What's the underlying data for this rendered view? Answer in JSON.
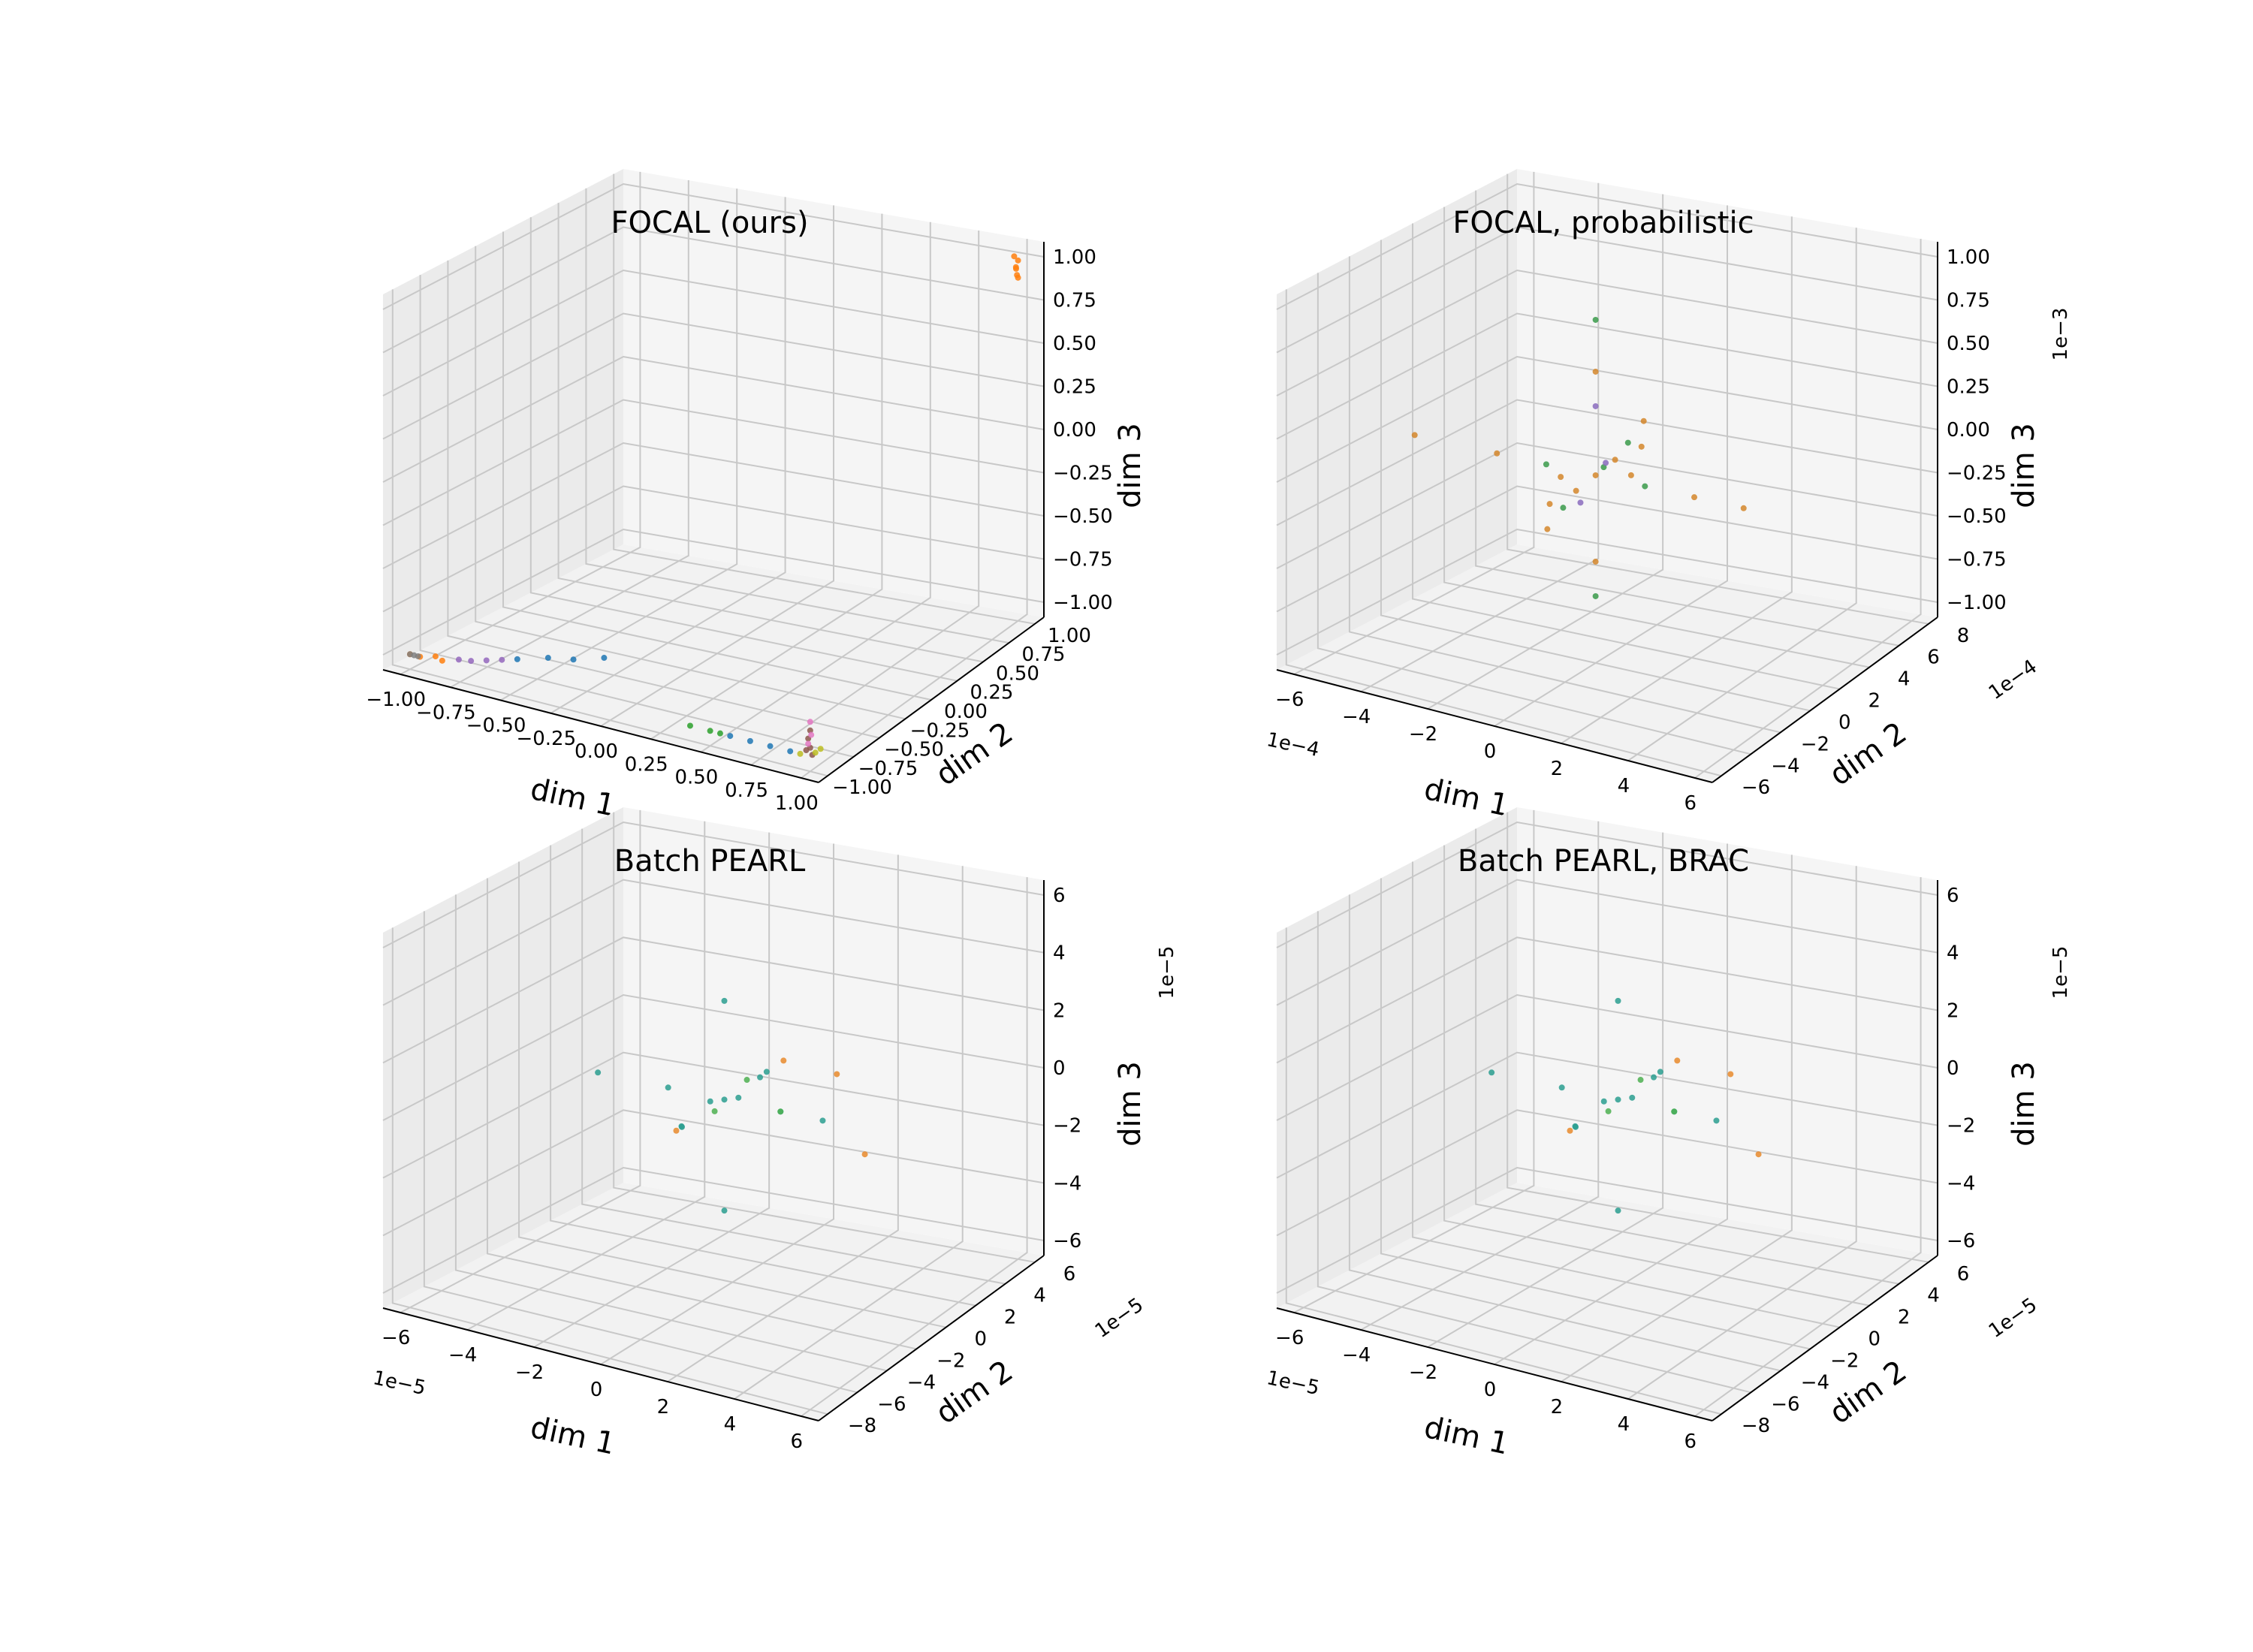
{
  "figure": {
    "background": "#ffffff",
    "pane_color": "#f2f2f2",
    "grid_color": "#c8c8c8"
  },
  "chart_data": [
    {
      "type": "scatter",
      "subtype": "3d",
      "title": "FOCAL (ours)",
      "xlabel": "dim 1",
      "ylabel": "dim 2",
      "zlabel": "dim 3",
      "xlim": [
        -1.0,
        1.0
      ],
      "ylim": [
        -1.0,
        1.0
      ],
      "zlim": [
        -1.0,
        1.0
      ],
      "xticks": [
        "−1.00",
        "−0.75",
        "−0.50",
        "−0.25",
        "0.00",
        "0.25",
        "0.50",
        "0.75",
        "1.00"
      ],
      "yticks": [
        "−1.00",
        "−0.75",
        "−0.50",
        "−0.25",
        "0.00",
        "0.25",
        "0.50",
        "0.75",
        "1.00"
      ],
      "zticks": [
        "−1.00",
        "−0.75",
        "−0.50",
        "−0.25",
        "0.00",
        "0.25",
        "0.50",
        "0.75",
        "1.00"
      ],
      "x_offset": "",
      "y_offset": "",
      "z_offset": "",
      "grid": true,
      "series": [
        {
          "name": "orange cluster top",
          "color": "#ff7f0e",
          "points": [
            [
              1.0,
              1.0,
              1.0
            ],
            [
              1.0,
              0.98,
              0.97
            ],
            [
              0.99,
              1.0,
              0.95
            ],
            [
              1.0,
              0.99,
              0.92
            ],
            [
              0.98,
              1.0,
              1.02
            ],
            [
              1.0,
              1.0,
              0.9
            ]
          ]
        },
        {
          "name": "brown cluster",
          "color": "#8c564b",
          "points": [
            [
              1.0,
              -1.0,
              -0.95
            ],
            [
              0.99,
              -1.0,
              -0.9
            ],
            [
              1.0,
              -0.98,
              -1.0
            ],
            [
              1.0,
              -1.0,
              -0.85
            ],
            [
              0.98,
              -1.0,
              -0.97
            ]
          ]
        },
        {
          "name": "pink cluster",
          "color": "#e377c2",
          "points": [
            [
              1.0,
              -1.0,
              -0.8
            ],
            [
              1.0,
              -0.99,
              -0.88
            ],
            [
              0.99,
              -1.0,
              -0.93
            ]
          ]
        },
        {
          "name": "blue streak",
          "color": "#1f77b4",
          "points": [
            [
              -0.3,
              -0.5,
              -1.0
            ],
            [
              -0.4,
              -0.6,
              -1.0
            ],
            [
              -0.5,
              -0.65,
              -1.0
            ],
            [
              -0.6,
              -0.75,
              -1.0
            ],
            [
              0.6,
              -1.0,
              -1.0
            ],
            [
              0.7,
              -1.0,
              -1.0
            ],
            [
              0.8,
              -1.0,
              -1.0
            ],
            [
              0.9,
              -1.0,
              -1.0
            ]
          ]
        },
        {
          "name": "purple streak",
          "color": "#9467bd",
          "points": [
            [
              -0.65,
              -0.8,
              -1.0
            ],
            [
              -0.7,
              -0.85,
              -1.0
            ],
            [
              -0.75,
              -0.9,
              -1.0
            ],
            [
              -0.8,
              -0.92,
              -1.0
            ]
          ]
        },
        {
          "name": "green streak",
          "color": "#2ca02c",
          "points": [
            [
              0.4,
              -1.0,
              -1.0
            ],
            [
              0.5,
              -1.0,
              -1.0
            ],
            [
              0.55,
              -1.0,
              -1.0
            ]
          ]
        },
        {
          "name": "olive streak",
          "color": "#bcbd22",
          "points": [
            [
              0.95,
              -1.0,
              -1.0
            ],
            [
              1.0,
              -0.95,
              -1.0
            ],
            [
              1.0,
              -0.9,
              -1.0
            ]
          ]
        },
        {
          "name": "orange base",
          "color": "#ff7f0e",
          "points": [
            [
              -0.9,
              -0.95,
              -1.0
            ],
            [
              -0.95,
              -1.0,
              -1.0
            ],
            [
              -1.0,
              -1.0,
              -1.0
            ],
            [
              -0.85,
              -0.98,
              -1.0
            ]
          ]
        },
        {
          "name": "gray base",
          "color": "#7f7f7f",
          "points": [
            [
              -1.0,
              -1.0,
              -1.0
            ],
            [
              -0.98,
              -1.0,
              -1.0
            ],
            [
              -0.96,
              -1.0,
              -1.0
            ]
          ]
        }
      ]
    },
    {
      "type": "scatter",
      "subtype": "3d",
      "title": "FOCAL, probabilistic",
      "xlabel": "dim 1",
      "ylabel": "dim 2",
      "zlabel": "dim 3",
      "xlim": [
        -6,
        6
      ],
      "ylim": [
        -6,
        8
      ],
      "zlim": [
        -1.0,
        1.0
      ],
      "xticks": [
        "−6",
        "−4",
        "−2",
        "0",
        "2",
        "4",
        "6"
      ],
      "yticks": [
        "−6",
        "−4",
        "−2",
        "0",
        "2",
        "4",
        "6",
        "8"
      ],
      "zticks": [
        "−1.00",
        "−0.75",
        "−0.50",
        "−0.25",
        "0.00",
        "0.25",
        "0.50",
        "0.75",
        "1.00"
      ],
      "x_offset": "1e−4",
      "y_offset": "1e−4",
      "z_offset": "1e−3",
      "grid": true,
      "series": [
        {
          "name": "mixed points",
          "color": "#d4862a",
          "points": [
            [
              0,
              0,
              0
            ],
            [
              0.5,
              0.2,
              0.1
            ],
            [
              -0.5,
              -0.2,
              -0.1
            ],
            [
              3,
              0,
              0
            ],
            [
              4.5,
              0,
              0
            ],
            [
              -3,
              0,
              0
            ],
            [
              -5.5,
              0,
              0
            ],
            [
              0,
              3,
              0
            ],
            [
              0,
              -3,
              0
            ],
            [
              0,
              0,
              0.6
            ],
            [
              0,
              0,
              -0.5
            ],
            [
              1,
              1,
              0.3
            ],
            [
              -1,
              -1,
              -0.3
            ],
            [
              2,
              -2,
              0.2
            ],
            [
              -2,
              2,
              -0.2
            ]
          ]
        },
        {
          "name": "green points",
          "color": "#3a9a4a",
          "points": [
            [
              0.2,
              0.1,
              0.05
            ],
            [
              0.8,
              0.4,
              0.2
            ],
            [
              -0.8,
              -0.4,
              -0.2
            ],
            [
              0,
              0,
              0.9
            ],
            [
              1.5,
              0,
              0
            ],
            [
              -1.5,
              0,
              0
            ],
            [
              0,
              0,
              -0.7
            ]
          ]
        },
        {
          "name": "purple points",
          "color": "#8a6bbd",
          "points": [
            [
              0.4,
              -0.2,
              0.1
            ],
            [
              -0.6,
              0.3,
              -0.2
            ],
            [
              0,
              0,
              0.4
            ]
          ]
        }
      ]
    },
    {
      "type": "scatter",
      "subtype": "3d",
      "title": "Batch PEARL",
      "xlabel": "dim 1",
      "ylabel": "dim 2",
      "zlabel": "dim 3",
      "xlim": [
        -7,
        7
      ],
      "ylim": [
        -8,
        7
      ],
      "zlim": [
        -7,
        7
      ],
      "xticks": [
        "−6",
        "−4",
        "−2",
        "0",
        "2",
        "4",
        "6"
      ],
      "yticks": [
        "−8",
        "−6",
        "−4",
        "−2",
        "0",
        "2",
        "4",
        "6"
      ],
      "zticks": [
        "−6",
        "−4",
        "−2",
        "0",
        "2",
        "4",
        "6"
      ],
      "x_offset": "1e−5",
      "y_offset": "1e−5",
      "z_offset": "1e−5",
      "grid": true,
      "series": [
        {
          "name": "teal points",
          "color": "#2a9d8f",
          "points": [
            [
              0,
              0,
              0
            ],
            [
              0.4,
              0.2,
              0.1
            ],
            [
              -0.4,
              -0.2,
              -0.1
            ],
            [
              2,
              0,
              0
            ],
            [
              3.5,
              0,
              0
            ],
            [
              -2,
              0,
              0
            ],
            [
              -4.5,
              0,
              0
            ],
            [
              0,
              2.5,
              0
            ],
            [
              0,
              -3,
              0
            ],
            [
              0,
              0,
              4
            ],
            [
              0,
              0,
              -4.5
            ],
            [
              1,
              1,
              1
            ],
            [
              -1,
              -1,
              -1
            ]
          ]
        },
        {
          "name": "orange points",
          "color": "#e8892b",
          "points": [
            [
              1.5,
              1.2,
              1.5
            ],
            [
              -1.2,
              -1,
              -1.2
            ],
            [
              3,
              2,
              1
            ],
            [
              5,
              0,
              -1
            ]
          ]
        },
        {
          "name": "green points",
          "color": "#4caf50",
          "points": [
            [
              0.6,
              0.4,
              0.8
            ],
            [
              -0.6,
              0.5,
              -0.8
            ],
            [
              2.5,
              -1,
              0.5
            ]
          ]
        }
      ]
    },
    {
      "type": "scatter",
      "subtype": "3d",
      "title": "Batch PEARL, BRAC",
      "xlabel": "dim 1",
      "ylabel": "dim 2",
      "zlabel": "dim 3",
      "xlim": [
        -7,
        7
      ],
      "ylim": [
        -8,
        7
      ],
      "zlim": [
        -7,
        7
      ],
      "xticks": [
        "−6",
        "−4",
        "−2",
        "0",
        "2",
        "4",
        "6"
      ],
      "yticks": [
        "−8",
        "−6",
        "−4",
        "−2",
        "0",
        "2",
        "4",
        "6"
      ],
      "zticks": [
        "−6",
        "−4",
        "−2",
        "0",
        "2",
        "4",
        "6"
      ],
      "x_offset": "1e−5",
      "y_offset": "1e−5",
      "z_offset": "1e−5",
      "grid": true,
      "series": [
        {
          "name": "teal points",
          "color": "#2a9d8f",
          "points": [
            [
              0,
              0,
              0
            ],
            [
              0.4,
              0.2,
              0.1
            ],
            [
              -0.4,
              -0.2,
              -0.1
            ],
            [
              2,
              0,
              0
            ],
            [
              3.5,
              0,
              0
            ],
            [
              -2,
              0,
              0
            ],
            [
              -4.5,
              0,
              0
            ],
            [
              0,
              2.5,
              0
            ],
            [
              0,
              -3,
              0
            ],
            [
              0,
              0,
              4
            ],
            [
              0,
              0,
              -4.5
            ],
            [
              1,
              1,
              1
            ],
            [
              -1,
              -1,
              -1
            ]
          ]
        },
        {
          "name": "orange points",
          "color": "#e8892b",
          "points": [
            [
              1.5,
              1.2,
              1.5
            ],
            [
              -1.2,
              -1,
              -1.2
            ],
            [
              3,
              2,
              1
            ],
            [
              5,
              0,
              -1
            ]
          ]
        },
        {
          "name": "green points",
          "color": "#4caf50",
          "points": [
            [
              0.6,
              0.4,
              0.8
            ],
            [
              -0.6,
              0.5,
              -0.8
            ],
            [
              2.5,
              -1,
              0.5
            ]
          ]
        }
      ]
    }
  ]
}
